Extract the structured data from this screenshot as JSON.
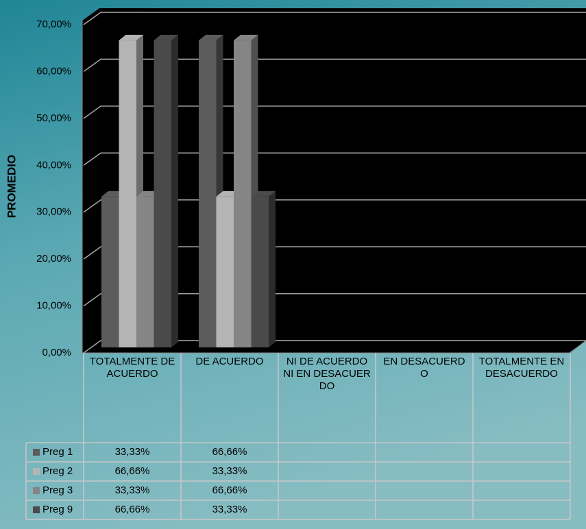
{
  "chart_data": {
    "type": "bar3d",
    "y_label": "PROMEDIO",
    "categories": [
      "TOTALMENTE DE ACUERDO",
      "DE ACUERDO",
      "NI DE ACUERDO NI EN DESACUERDO",
      "EN DESACUERDO",
      "TOTALMENTE EN DESACUERDO"
    ],
    "series": [
      {
        "name": "Preg 1",
        "color": "#5c5c5c",
        "values": [
          33.33,
          66.66,
          null,
          null,
          null
        ],
        "value_labels": [
          "33,33%",
          "66,66%",
          null,
          null,
          null
        ]
      },
      {
        "name": "Preg 2",
        "color": "#b4b4b4",
        "values": [
          66.66,
          33.33,
          null,
          null,
          null
        ],
        "value_labels": [
          "66,66%",
          "33,33%",
          null,
          null,
          null
        ]
      },
      {
        "name": "Preg 3",
        "color": "#858585",
        "values": [
          33.33,
          66.66,
          null,
          null,
          null
        ],
        "value_labels": [
          "33,33%",
          "66,66%",
          null,
          null,
          null
        ]
      },
      {
        "name": "Preg 9",
        "color": "#4a4a4a",
        "values": [
          66.66,
          33.33,
          null,
          null,
          null
        ],
        "value_labels": [
          "66,66%",
          "33,33%",
          null,
          null,
          null
        ]
      }
    ],
    "ylim": [
      0,
      70
    ],
    "yticks": [
      {
        "value": 0,
        "label": "0,00%"
      },
      {
        "value": 10,
        "label": "10,00%"
      },
      {
        "value": 20,
        "label": "20,00%"
      },
      {
        "value": 30,
        "label": "30,00%"
      },
      {
        "value": 40,
        "label": "40,00%"
      },
      {
        "value": 50,
        "label": "50,00%"
      },
      {
        "value": 60,
        "label": "60,00%"
      },
      {
        "value": 70,
        "label": "70,00%"
      }
    ],
    "grid": true
  }
}
